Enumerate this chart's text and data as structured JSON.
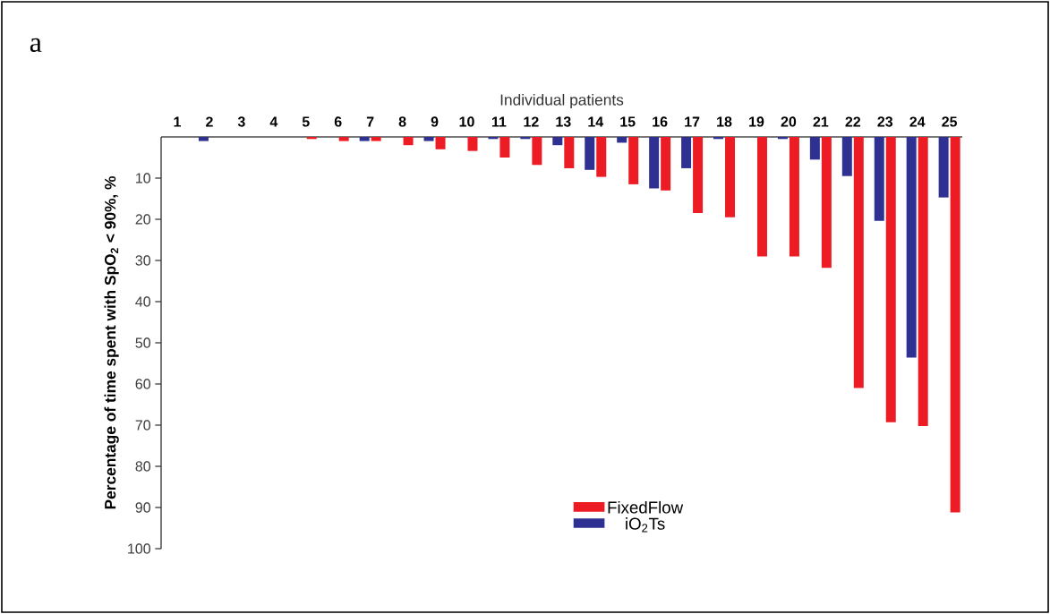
{
  "chart_data": {
    "type": "bar",
    "xlabel": "Individual patients",
    "ylabel": "Percentage of time spent with SpO$_{2}$ < 90%, %",
    "annotations": [
      "a"
    ],
    "categories": [
      "1",
      "2",
      "3",
      "4",
      "5",
      "6",
      "7",
      "8",
      "9",
      "10",
      "11",
      "12",
      "13",
      "14",
      "15",
      "16",
      "17",
      "18",
      "19",
      "20",
      "21",
      "22",
      "23",
      "24",
      "25"
    ],
    "series": [
      {
        "name": "iO$_{2}$Ts",
        "color": "#2e3192",
        "values": [
          0,
          1,
          0,
          0,
          0,
          0,
          1,
          0,
          1,
          0,
          0.5,
          0.5,
          2,
          8,
          1.4,
          12.5,
          7.6,
          0.5,
          0,
          0.5,
          5.5,
          9.5,
          20.4,
          53.6,
          14.7
        ]
      },
      {
        "name": "FixedFlow",
        "color": "#ed1c24",
        "values": [
          0,
          0,
          0,
          0,
          0.5,
          1,
          1,
          2,
          3,
          3.4,
          5,
          6.8,
          7.6,
          9.7,
          11.5,
          13,
          18.5,
          19.5,
          29,
          29,
          31.8,
          61,
          69.3,
          70.2,
          91.2
        ]
      }
    ],
    "ylim": [
      100,
      0
    ],
    "yticks": [
      10,
      20,
      30,
      40,
      50,
      60,
      70,
      80,
      90,
      100
    ],
    "legend": "bottom"
  }
}
